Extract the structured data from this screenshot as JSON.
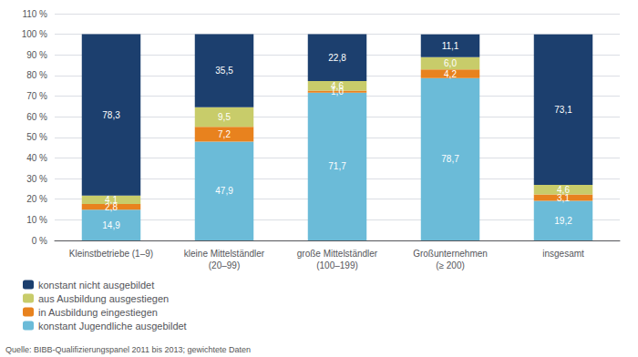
{
  "chart_data": {
    "type": "bar",
    "stacked": true,
    "categories": [
      "Kleinstbetriebe (1–9)",
      "kleine Mittelständler\n(20–99)",
      "große Mittelständler\n(100–199)",
      "Großunternehmen\n(≥ 200)",
      "insgesamt"
    ],
    "series": [
      {
        "name": "konstant Jugendliche ausgebildet",
        "color": "#6BBBD8",
        "values": [
          14.9,
          47.9,
          71.7,
          78.7,
          19.2
        ],
        "value_labels": [
          "14,9",
          "47,9",
          "71,7",
          "78,7",
          "19,2"
        ]
      },
      {
        "name": "in Ausbildung eingestiegen",
        "color": "#E8821E",
        "values": [
          2.8,
          7.2,
          1.0,
          4.2,
          3.1
        ],
        "value_labels": [
          "2,8",
          "7,2",
          "1,0",
          "4,2",
          "3,1"
        ]
      },
      {
        "name": "aus Ausbildung ausgestiegen",
        "color": "#C8CC6A",
        "values": [
          4.1,
          9.5,
          4.6,
          6.0,
          4.6
        ],
        "value_labels": [
          "4,1",
          "9,5",
          "4,6",
          "6,0",
          "4,6"
        ]
      },
      {
        "name": "konstant nicht ausgebildet",
        "color": "#1C3F6E",
        "values": [
          78.3,
          35.5,
          22.8,
          11.1,
          73.1
        ],
        "value_labels": [
          "78,3",
          "35,5",
          "22,8",
          "11,1",
          "73,1"
        ]
      }
    ],
    "ylim": [
      0,
      110
    ],
    "yticks": [
      {
        "value": 0,
        "label": "0 %"
      },
      {
        "value": 10,
        "label": "10 %"
      },
      {
        "value": 20,
        "label": "20 %"
      },
      {
        "value": 30,
        "label": "30 %"
      },
      {
        "value": 40,
        "label": "40 %"
      },
      {
        "value": 50,
        "label": "50 %"
      },
      {
        "value": 60,
        "label": "60 %"
      },
      {
        "value": 70,
        "label": "70 %"
      },
      {
        "value": 80,
        "label": "80 %"
      },
      {
        "value": 90,
        "label": "90 %"
      },
      {
        "value": 100,
        "label": "100 %"
      },
      {
        "value": 110,
        "label": "110 %"
      }
    ],
    "grid": true,
    "data_labels": true,
    "legend": "lower left",
    "annotations": [
      "Quelle: BIBB-Qualifizierungspanel 2011 bis 2013; gewichtete Daten"
    ]
  }
}
